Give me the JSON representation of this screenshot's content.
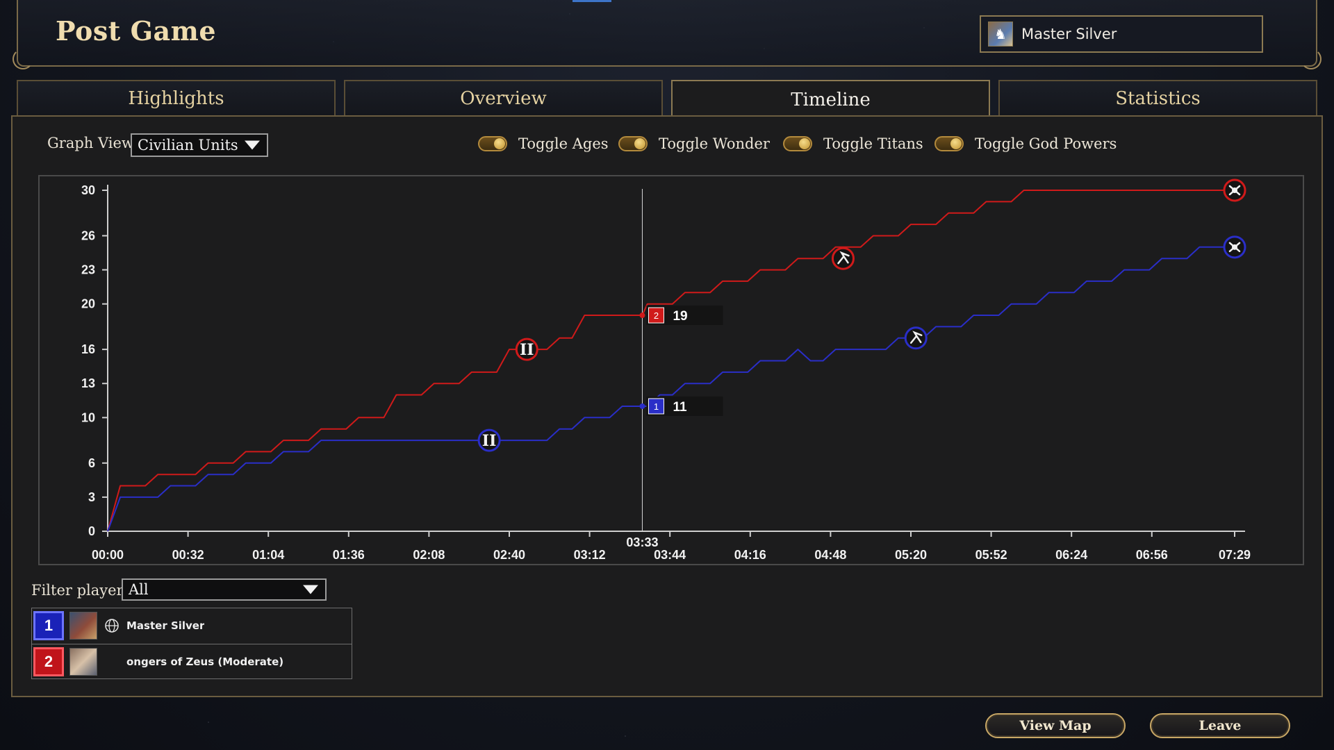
{
  "header": {
    "title": "Post Game",
    "player_name": "Master Silver"
  },
  "tabs": [
    {
      "label": "Highlights",
      "active": false
    },
    {
      "label": "Overview",
      "active": false
    },
    {
      "label": "Timeline",
      "active": true
    },
    {
      "label": "Statistics",
      "active": false
    }
  ],
  "controls": {
    "graph_view_label": "Graph View:",
    "graph_view_value": "Civilian Units",
    "toggles": [
      "Toggle Ages",
      "Toggle Wonder",
      "Toggle Titans",
      "Toggle God Powers"
    ]
  },
  "filter": {
    "label": "Filter players:",
    "value": "All"
  },
  "players": [
    {
      "number": "1",
      "name": "Master Silver",
      "color": "#1a22b8"
    },
    {
      "number": "2",
      "name": "ongers of Zeus (Moderate)",
      "color": "#c0141a"
    }
  ],
  "buttons": {
    "view_map": "View Map",
    "leave": "Leave"
  },
  "chart_data": {
    "type": "line",
    "title": "",
    "ylim": [
      0,
      30
    ],
    "y_ticks": [
      "0",
      "3",
      "6",
      "10",
      "13",
      "16",
      "20",
      "23",
      "26",
      "30"
    ],
    "x_ticks": [
      "00:00",
      "00:32",
      "01:04",
      "01:36",
      "02:08",
      "02:40",
      "03:12",
      "03:44",
      "04:16",
      "04:48",
      "05:20",
      "05:52",
      "06:24",
      "06:56",
      "07:29"
    ],
    "cursor": {
      "time": "03:33",
      "t_seconds": 213,
      "labels": [
        {
          "player": "2",
          "value": "19"
        },
        {
          "player": "1",
          "value": "11"
        }
      ]
    },
    "series": [
      {
        "player": "2",
        "color": "#d01a1a",
        "points": [
          [
            0,
            0
          ],
          [
            5,
            4
          ],
          [
            15,
            4
          ],
          [
            20,
            5
          ],
          [
            35,
            5
          ],
          [
            40,
            6
          ],
          [
            50,
            6
          ],
          [
            55,
            7
          ],
          [
            65,
            7
          ],
          [
            70,
            8
          ],
          [
            80,
            8
          ],
          [
            85,
            9
          ],
          [
            95,
            9
          ],
          [
            100,
            10
          ],
          [
            110,
            10
          ],
          [
            115,
            12
          ],
          [
            125,
            12
          ],
          [
            130,
            13
          ],
          [
            140,
            13
          ],
          [
            145,
            14
          ],
          [
            155,
            14
          ],
          [
            160,
            16
          ],
          [
            165,
            16
          ],
          [
            170,
            16
          ],
          [
            175,
            16
          ],
          [
            180,
            17
          ],
          [
            185,
            17
          ],
          [
            190,
            19
          ],
          [
            200,
            19
          ],
          [
            213,
            19
          ],
          [
            215,
            20
          ],
          [
            225,
            20
          ],
          [
            230,
            21
          ],
          [
            240,
            21
          ],
          [
            245,
            22
          ],
          [
            255,
            22
          ],
          [
            260,
            23
          ],
          [
            270,
            23
          ],
          [
            275,
            24
          ],
          [
            285,
            24
          ],
          [
            290,
            25
          ],
          [
            300,
            25
          ],
          [
            305,
            26
          ],
          [
            315,
            26
          ],
          [
            320,
            27
          ],
          [
            330,
            27
          ],
          [
            335,
            28
          ],
          [
            345,
            28
          ],
          [
            350,
            29
          ],
          [
            360,
            29
          ],
          [
            365,
            30
          ],
          [
            430,
            30
          ],
          [
            449,
            30
          ]
        ]
      },
      {
        "player": "1",
        "color": "#2a2ec8",
        "points": [
          [
            0,
            0
          ],
          [
            5,
            3
          ],
          [
            20,
            3
          ],
          [
            25,
            4
          ],
          [
            35,
            4
          ],
          [
            40,
            5
          ],
          [
            50,
            5
          ],
          [
            55,
            6
          ],
          [
            65,
            6
          ],
          [
            70,
            7
          ],
          [
            80,
            7
          ],
          [
            85,
            8
          ],
          [
            160,
            8
          ],
          [
            170,
            8
          ],
          [
            175,
            8
          ],
          [
            180,
            9
          ],
          [
            185,
            9
          ],
          [
            190,
            10
          ],
          [
            200,
            10
          ],
          [
            205,
            11
          ],
          [
            213,
            11
          ],
          [
            215,
            11
          ],
          [
            220,
            12
          ],
          [
            225,
            12
          ],
          [
            230,
            13
          ],
          [
            240,
            13
          ],
          [
            245,
            14
          ],
          [
            255,
            14
          ],
          [
            260,
            15
          ],
          [
            270,
            15
          ],
          [
            275,
            16
          ],
          [
            280,
            15
          ],
          [
            285,
            15
          ],
          [
            290,
            16
          ],
          [
            300,
            16
          ],
          [
            310,
            16
          ],
          [
            315,
            17
          ],
          [
            325,
            17
          ],
          [
            330,
            18
          ],
          [
            340,
            18
          ],
          [
            345,
            19
          ],
          [
            355,
            19
          ],
          [
            360,
            20
          ],
          [
            370,
            20
          ],
          [
            375,
            21
          ],
          [
            385,
            21
          ],
          [
            390,
            22
          ],
          [
            400,
            22
          ],
          [
            405,
            23
          ],
          [
            415,
            23
          ],
          [
            420,
            24
          ],
          [
            430,
            24
          ],
          [
            435,
            25
          ],
          [
            449,
            25
          ]
        ]
      }
    ],
    "markers": [
      {
        "player": "2",
        "t": 167,
        "v": 16,
        "kind": "age",
        "label": "II"
      },
      {
        "player": "1",
        "t": 152,
        "v": 8,
        "kind": "age",
        "label": "II"
      },
      {
        "player": "2",
        "t": 293,
        "v": 24,
        "kind": "god-power"
      },
      {
        "player": "1",
        "t": 322,
        "v": 17,
        "kind": "god-power"
      },
      {
        "player": "2",
        "t": 449,
        "v": 30,
        "kind": "end"
      },
      {
        "player": "1",
        "t": 449,
        "v": 25,
        "kind": "end"
      }
    ]
  }
}
